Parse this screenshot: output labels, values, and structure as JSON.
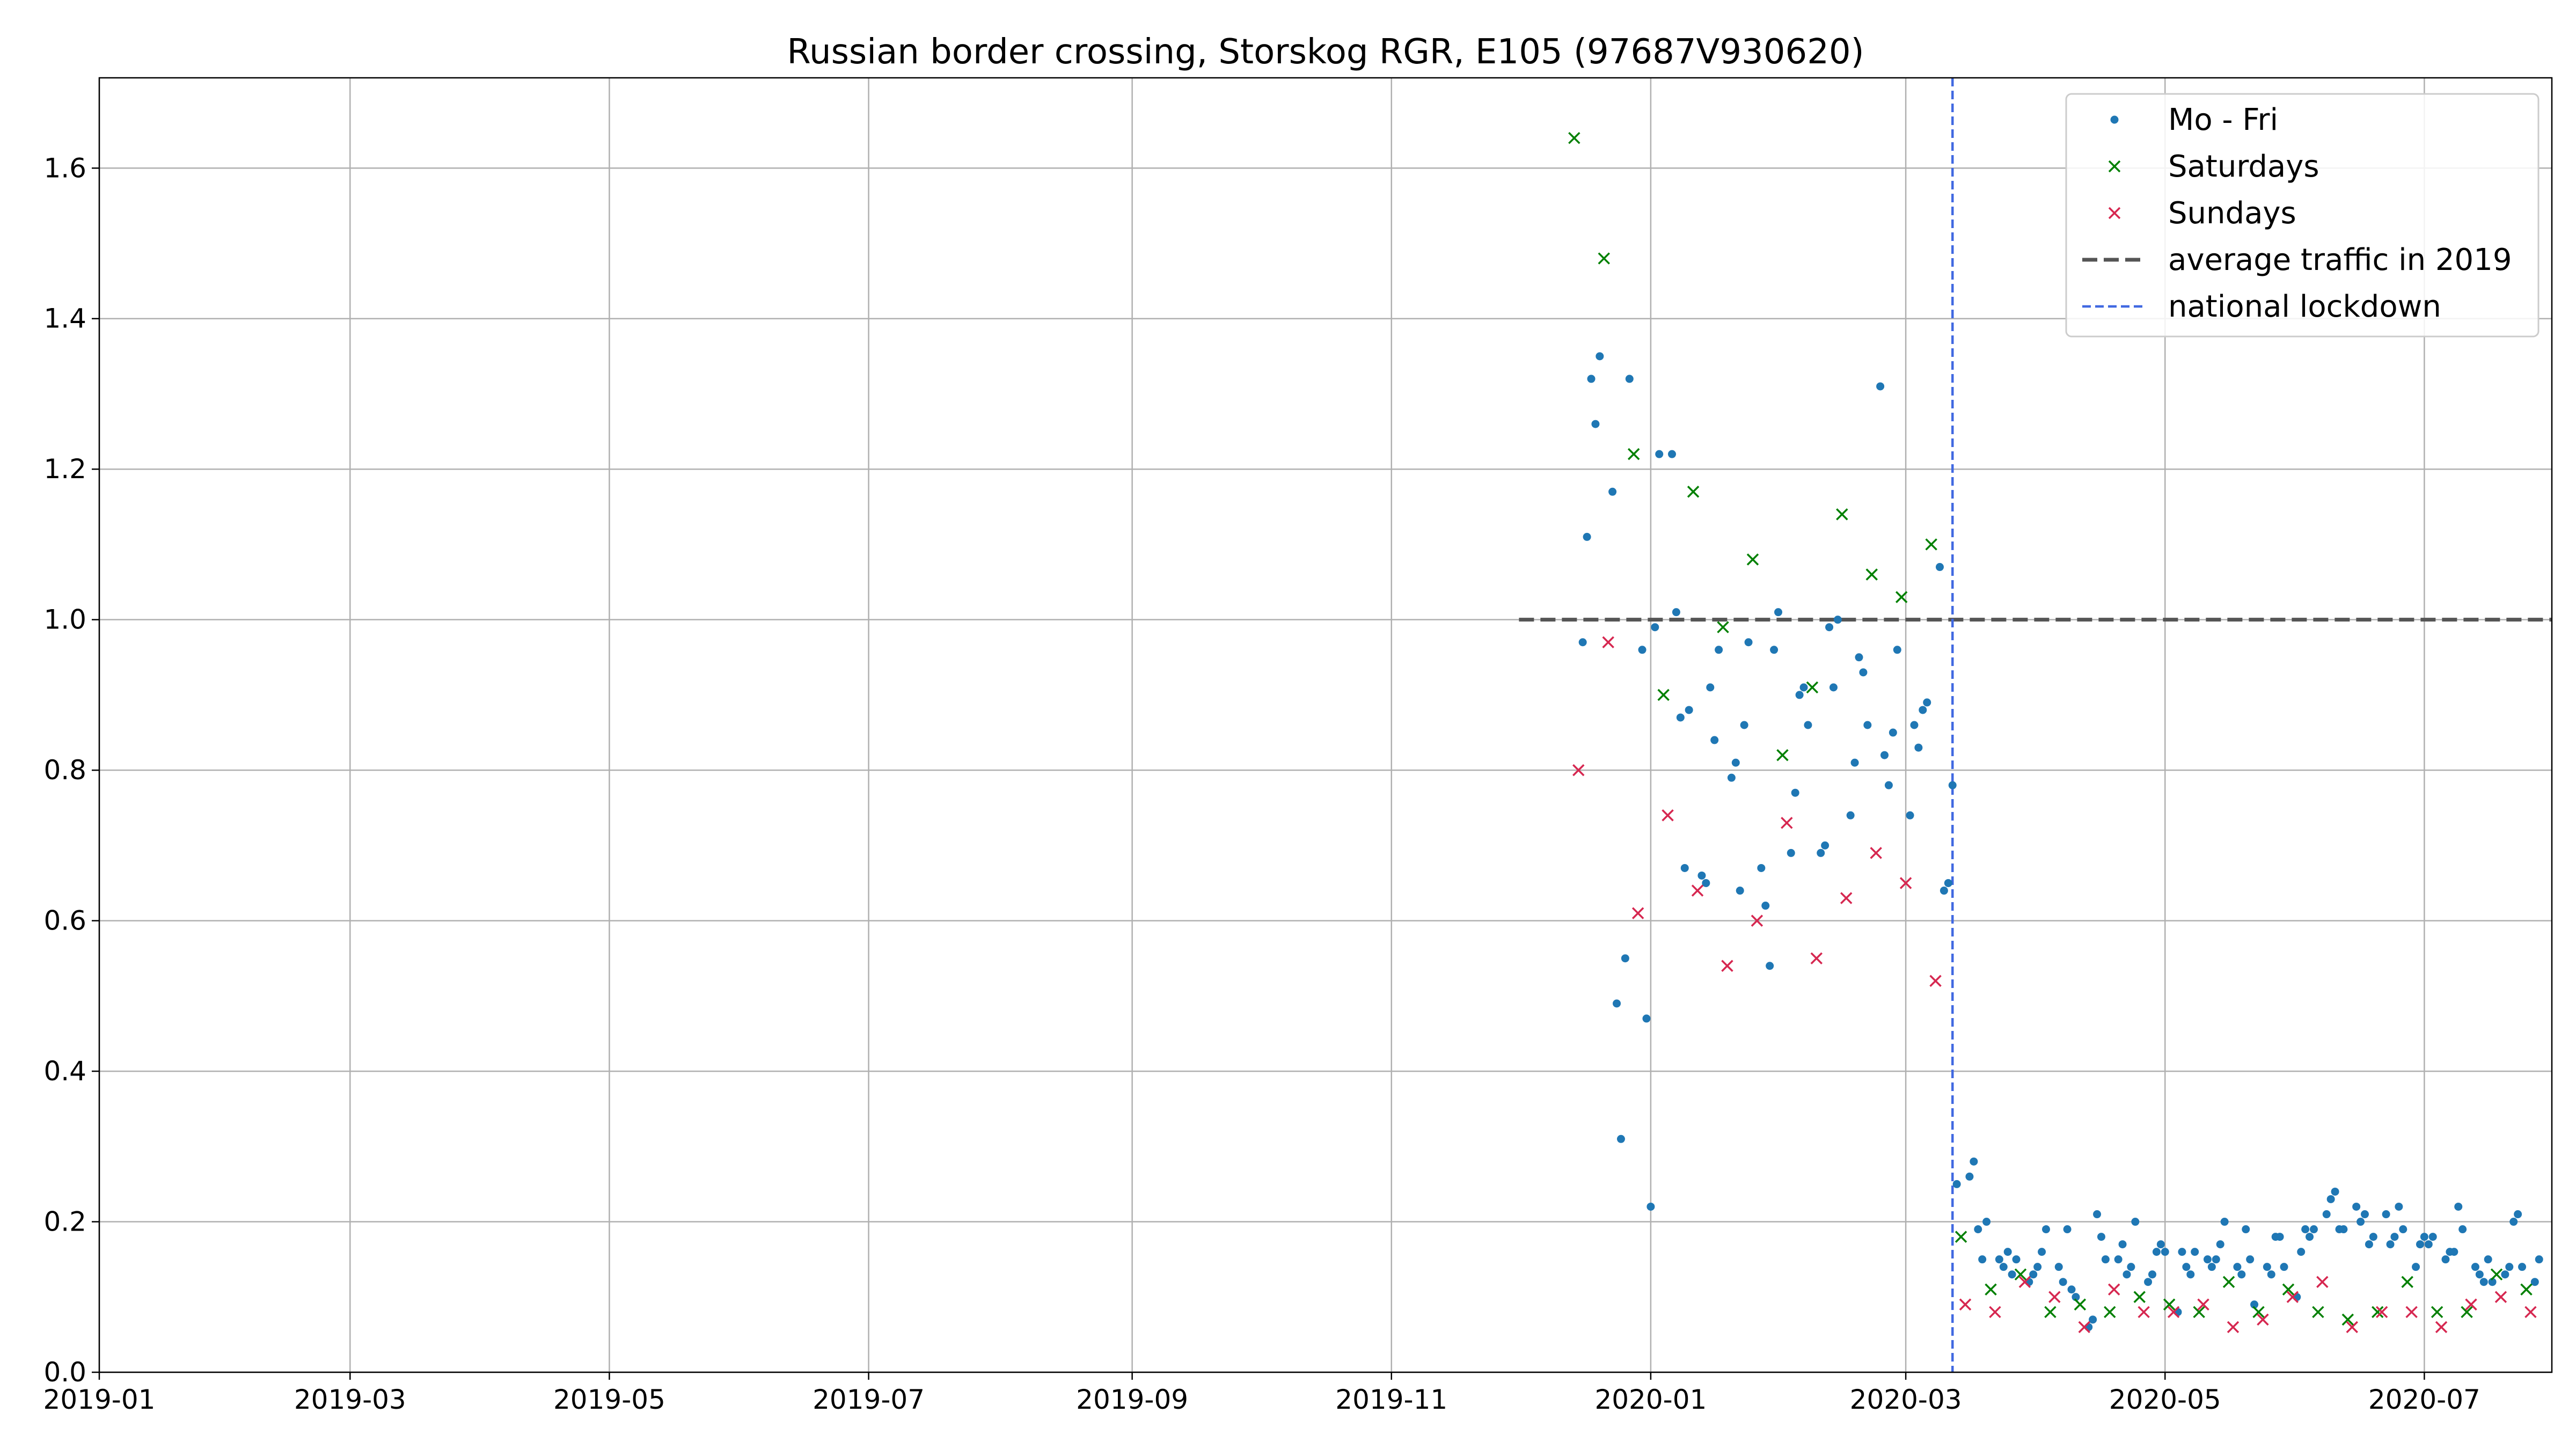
{
  "chart_data": {
    "type": "scatter",
    "title": "Russian border crossing, Storskog RGR, E105 (97687V930620)",
    "xlabel": "",
    "ylabel": "",
    "x_axis": {
      "type": "date",
      "range": [
        "2019-01-01",
        "2020-07-31"
      ],
      "ticks": [
        "2019-01-01",
        "2019-03-01",
        "2019-05-01",
        "2019-07-01",
        "2019-09-01",
        "2019-11-01",
        "2020-01-01",
        "2020-03-01",
        "2020-05-01",
        "2020-07-01"
      ],
      "tick_labels": [
        "2019-01",
        "2019-03",
        "2019-05",
        "2019-07",
        "2019-09",
        "2019-11",
        "2020-01",
        "2020-03",
        "2020-05",
        "2020-07"
      ]
    },
    "y_axis": {
      "range": [
        0.0,
        1.72
      ],
      "ticks": [
        0.0,
        0.2,
        0.4,
        0.6,
        0.8,
        1.0,
        1.2,
        1.4,
        1.6
      ],
      "tick_labels": [
        "0.0",
        "0.2",
        "0.4",
        "0.6",
        "0.8",
        "1.0",
        "1.2",
        "1.4",
        "1.6"
      ]
    },
    "grid": true,
    "legend_position": "top-right",
    "series": [
      {
        "name": "Mo - Fri",
        "marker": "dot",
        "color": "#1f77b4",
        "points": [
          [
            "2019-12-16",
            0.97
          ],
          [
            "2019-12-17",
            1.11
          ],
          [
            "2019-12-18",
            1.32
          ],
          [
            "2019-12-19",
            1.26
          ],
          [
            "2019-12-20",
            1.35
          ],
          [
            "2019-12-23",
            1.17
          ],
          [
            "2019-12-24",
            0.49
          ],
          [
            "2019-12-25",
            0.31
          ],
          [
            "2019-12-26",
            0.55
          ],
          [
            "2019-12-27",
            1.32
          ],
          [
            "2019-12-30",
            0.96
          ],
          [
            "2019-12-31",
            0.47
          ],
          [
            "2020-01-01",
            0.22
          ],
          [
            "2020-01-02",
            0.99
          ],
          [
            "2020-01-03",
            1.22
          ],
          [
            "2020-01-06",
            1.22
          ],
          [
            "2020-01-07",
            1.01
          ],
          [
            "2020-01-08",
            0.87
          ],
          [
            "2020-01-09",
            0.67
          ],
          [
            "2020-01-10",
            0.88
          ],
          [
            "2020-01-13",
            0.66
          ],
          [
            "2020-01-14",
            0.65
          ],
          [
            "2020-01-15",
            0.91
          ],
          [
            "2020-01-16",
            0.84
          ],
          [
            "2020-01-17",
            0.96
          ],
          [
            "2020-01-20",
            0.79
          ],
          [
            "2020-01-21",
            0.81
          ],
          [
            "2020-01-22",
            0.64
          ],
          [
            "2020-01-23",
            0.86
          ],
          [
            "2020-01-24",
            0.97
          ],
          [
            "2020-01-27",
            0.67
          ],
          [
            "2020-01-28",
            0.62
          ],
          [
            "2020-01-29",
            0.54
          ],
          [
            "2020-01-30",
            0.96
          ],
          [
            "2020-01-31",
            1.01
          ],
          [
            "2020-02-03",
            0.69
          ],
          [
            "2020-02-04",
            0.77
          ],
          [
            "2020-02-05",
            0.9
          ],
          [
            "2020-02-06",
            0.91
          ],
          [
            "2020-02-07",
            0.86
          ],
          [
            "2020-02-10",
            0.69
          ],
          [
            "2020-02-11",
            0.7
          ],
          [
            "2020-02-12",
            0.99
          ],
          [
            "2020-02-13",
            0.91
          ],
          [
            "2020-02-14",
            1.0
          ],
          [
            "2020-02-17",
            0.74
          ],
          [
            "2020-02-18",
            0.81
          ],
          [
            "2020-02-19",
            0.95
          ],
          [
            "2020-02-20",
            0.93
          ],
          [
            "2020-02-21",
            0.86
          ],
          [
            "2020-02-24",
            1.31
          ],
          [
            "2020-02-25",
            0.82
          ],
          [
            "2020-02-26",
            0.78
          ],
          [
            "2020-02-27",
            0.85
          ],
          [
            "2020-02-28",
            0.96
          ],
          [
            "2020-03-02",
            0.74
          ],
          [
            "2020-03-03",
            0.86
          ],
          [
            "2020-03-04",
            0.83
          ],
          [
            "2020-03-05",
            0.88
          ],
          [
            "2020-03-06",
            0.89
          ],
          [
            "2020-03-09",
            1.07
          ],
          [
            "2020-03-10",
            0.64
          ],
          [
            "2020-03-11",
            0.65
          ],
          [
            "2020-03-12",
            0.78
          ],
          [
            "2020-03-13",
            0.25
          ],
          [
            "2020-03-16",
            0.26
          ],
          [
            "2020-03-17",
            0.28
          ],
          [
            "2020-03-18",
            0.19
          ],
          [
            "2020-03-19",
            0.15
          ],
          [
            "2020-03-20",
            0.2
          ],
          [
            "2020-03-23",
            0.15
          ],
          [
            "2020-03-24",
            0.14
          ],
          [
            "2020-03-25",
            0.16
          ],
          [
            "2020-03-26",
            0.13
          ],
          [
            "2020-03-27",
            0.15
          ],
          [
            "2020-03-30",
            0.12
          ],
          [
            "2020-03-31",
            0.13
          ],
          [
            "2020-04-01",
            0.14
          ],
          [
            "2020-04-02",
            0.16
          ],
          [
            "2020-04-03",
            0.19
          ],
          [
            "2020-04-06",
            0.14
          ],
          [
            "2020-04-07",
            0.12
          ],
          [
            "2020-04-08",
            0.19
          ],
          [
            "2020-04-09",
            0.11
          ],
          [
            "2020-04-10",
            0.1
          ],
          [
            "2020-04-13",
            0.06
          ],
          [
            "2020-04-14",
            0.07
          ],
          [
            "2020-04-15",
            0.21
          ],
          [
            "2020-04-16",
            0.18
          ],
          [
            "2020-04-17",
            0.15
          ],
          [
            "2020-04-20",
            0.15
          ],
          [
            "2020-04-21",
            0.17
          ],
          [
            "2020-04-22",
            0.13
          ],
          [
            "2020-04-23",
            0.14
          ],
          [
            "2020-04-24",
            0.2
          ],
          [
            "2020-04-27",
            0.12
          ],
          [
            "2020-04-28",
            0.13
          ],
          [
            "2020-04-29",
            0.16
          ],
          [
            "2020-04-30",
            0.17
          ],
          [
            "2020-05-01",
            0.16
          ],
          [
            "2020-05-04",
            0.08
          ],
          [
            "2020-05-05",
            0.16
          ],
          [
            "2020-05-06",
            0.14
          ],
          [
            "2020-05-07",
            0.13
          ],
          [
            "2020-05-08",
            0.16
          ],
          [
            "2020-05-11",
            0.15
          ],
          [
            "2020-05-12",
            0.14
          ],
          [
            "2020-05-13",
            0.15
          ],
          [
            "2020-05-14",
            0.17
          ],
          [
            "2020-05-15",
            0.2
          ],
          [
            "2020-05-18",
            0.14
          ],
          [
            "2020-05-19",
            0.13
          ],
          [
            "2020-05-20",
            0.19
          ],
          [
            "2020-05-21",
            0.15
          ],
          [
            "2020-05-22",
            0.09
          ],
          [
            "2020-05-25",
            0.14
          ],
          [
            "2020-05-26",
            0.13
          ],
          [
            "2020-05-27",
            0.18
          ],
          [
            "2020-05-28",
            0.18
          ],
          [
            "2020-05-29",
            0.14
          ],
          [
            "2020-06-01",
            0.1
          ],
          [
            "2020-06-02",
            0.16
          ],
          [
            "2020-06-03",
            0.19
          ],
          [
            "2020-06-04",
            0.18
          ],
          [
            "2020-06-05",
            0.19
          ],
          [
            "2020-06-08",
            0.21
          ],
          [
            "2020-06-09",
            0.23
          ],
          [
            "2020-06-10",
            0.24
          ],
          [
            "2020-06-11",
            0.19
          ],
          [
            "2020-06-12",
            0.19
          ],
          [
            "2020-06-15",
            0.22
          ],
          [
            "2020-06-16",
            0.2
          ],
          [
            "2020-06-17",
            0.21
          ],
          [
            "2020-06-18",
            0.17
          ],
          [
            "2020-06-19",
            0.18
          ],
          [
            "2020-06-22",
            0.21
          ],
          [
            "2020-06-23",
            0.17
          ],
          [
            "2020-06-24",
            0.18
          ],
          [
            "2020-06-25",
            0.22
          ],
          [
            "2020-06-26",
            0.19
          ],
          [
            "2020-06-29",
            0.14
          ],
          [
            "2020-06-30",
            0.17
          ],
          [
            "2020-07-01",
            0.18
          ],
          [
            "2020-07-02",
            0.17
          ],
          [
            "2020-07-03",
            0.18
          ],
          [
            "2020-07-06",
            0.15
          ],
          [
            "2020-07-07",
            0.16
          ],
          [
            "2020-07-08",
            0.16
          ],
          [
            "2020-07-09",
            0.22
          ],
          [
            "2020-07-10",
            0.19
          ],
          [
            "2020-07-13",
            0.14
          ],
          [
            "2020-07-14",
            0.13
          ],
          [
            "2020-07-15",
            0.12
          ],
          [
            "2020-07-16",
            0.15
          ],
          [
            "2020-07-17",
            0.12
          ],
          [
            "2020-07-20",
            0.13
          ],
          [
            "2020-07-21",
            0.14
          ],
          [
            "2020-07-22",
            0.2
          ],
          [
            "2020-07-23",
            0.21
          ],
          [
            "2020-07-24",
            0.14
          ],
          [
            "2020-07-27",
            0.12
          ],
          [
            "2020-07-28",
            0.15
          ]
        ]
      },
      {
        "name": "Saturdays",
        "marker": "x",
        "color": "#008000",
        "points": [
          [
            "2019-12-14",
            1.64
          ],
          [
            "2019-12-21",
            1.48
          ],
          [
            "2019-12-28",
            1.22
          ],
          [
            "2020-01-04",
            0.9
          ],
          [
            "2020-01-11",
            1.17
          ],
          [
            "2020-01-18",
            0.99
          ],
          [
            "2020-01-25",
            1.08
          ],
          [
            "2020-02-01",
            0.82
          ],
          [
            "2020-02-08",
            0.91
          ],
          [
            "2020-02-15",
            1.14
          ],
          [
            "2020-02-22",
            1.06
          ],
          [
            "2020-02-29",
            1.03
          ],
          [
            "2020-03-07",
            1.1
          ],
          [
            "2020-03-14",
            0.18
          ],
          [
            "2020-03-21",
            0.11
          ],
          [
            "2020-03-28",
            0.13
          ],
          [
            "2020-04-04",
            0.08
          ],
          [
            "2020-04-11",
            0.09
          ],
          [
            "2020-04-18",
            0.08
          ],
          [
            "2020-04-25",
            0.1
          ],
          [
            "2020-05-02",
            0.09
          ],
          [
            "2020-05-09",
            0.08
          ],
          [
            "2020-05-16",
            0.12
          ],
          [
            "2020-05-23",
            0.08
          ],
          [
            "2020-05-30",
            0.11
          ],
          [
            "2020-06-06",
            0.08
          ],
          [
            "2020-06-13",
            0.07
          ],
          [
            "2020-06-20",
            0.08
          ],
          [
            "2020-06-27",
            0.12
          ],
          [
            "2020-07-04",
            0.08
          ],
          [
            "2020-07-11",
            0.08
          ],
          [
            "2020-07-18",
            0.13
          ],
          [
            "2020-07-25",
            0.11
          ]
        ]
      },
      {
        "name": "Sundays",
        "marker": "x",
        "color": "#d62750",
        "points": [
          [
            "2019-12-15",
            0.8
          ],
          [
            "2019-12-22",
            0.97
          ],
          [
            "2019-12-29",
            0.61
          ],
          [
            "2020-01-05",
            0.74
          ],
          [
            "2020-01-12",
            0.64
          ],
          [
            "2020-01-19",
            0.54
          ],
          [
            "2020-01-26",
            0.6
          ],
          [
            "2020-02-02",
            0.73
          ],
          [
            "2020-02-09",
            0.55
          ],
          [
            "2020-02-16",
            0.63
          ],
          [
            "2020-02-23",
            0.69
          ],
          [
            "2020-03-01",
            0.65
          ],
          [
            "2020-03-08",
            0.52
          ],
          [
            "2020-03-15",
            0.09
          ],
          [
            "2020-03-22",
            0.08
          ],
          [
            "2020-03-29",
            0.12
          ],
          [
            "2020-04-05",
            0.1
          ],
          [
            "2020-04-12",
            0.06
          ],
          [
            "2020-04-19",
            0.11
          ],
          [
            "2020-04-26",
            0.08
          ],
          [
            "2020-05-03",
            0.08
          ],
          [
            "2020-05-10",
            0.09
          ],
          [
            "2020-05-17",
            0.06
          ],
          [
            "2020-05-24",
            0.07
          ],
          [
            "2020-05-31",
            0.1
          ],
          [
            "2020-06-07",
            0.12
          ],
          [
            "2020-06-14",
            0.06
          ],
          [
            "2020-06-21",
            0.08
          ],
          [
            "2020-06-28",
            0.08
          ],
          [
            "2020-07-05",
            0.06
          ],
          [
            "2020-07-12",
            0.09
          ],
          [
            "2020-07-19",
            0.1
          ],
          [
            "2020-07-26",
            0.08
          ]
        ]
      }
    ],
    "reference_lines": [
      {
        "name": "average traffic in 2019",
        "orientation": "horizontal",
        "y": 1.0,
        "x_from": "2019-12-01",
        "x_to": "2020-07-31",
        "color": "#555555",
        "style": "dashed"
      },
      {
        "name": "national lockdown",
        "orientation": "vertical",
        "x": "2020-03-12",
        "color": "#4169e1",
        "style": "dashed"
      }
    ]
  }
}
